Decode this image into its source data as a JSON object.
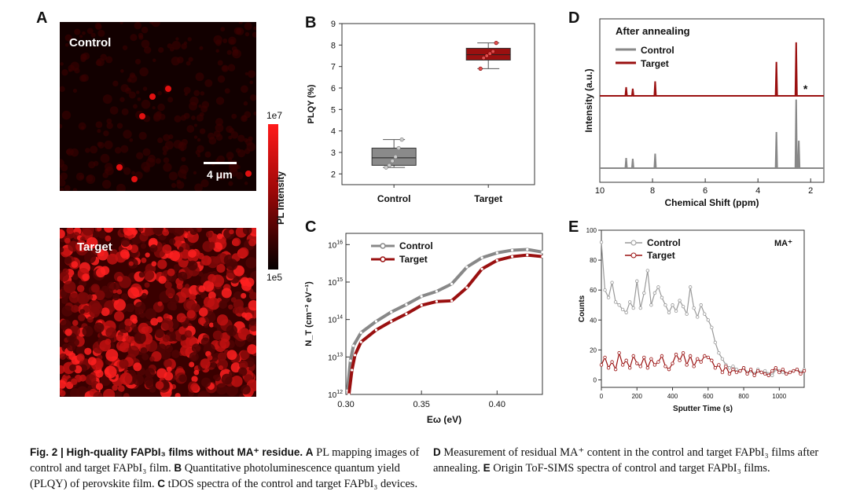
{
  "panels": {
    "A": {
      "letter": "A",
      "maps": [
        {
          "label": "Control",
          "scalebar": "4 μm"
        },
        {
          "label": "Target"
        }
      ],
      "colorbar": {
        "max": "1e7",
        "min": "1e5",
        "label": "PL Intensity"
      }
    },
    "B": {
      "letter": "B"
    },
    "C": {
      "letter": "C"
    },
    "D": {
      "letter": "D"
    },
    "E": {
      "letter": "E"
    }
  },
  "chart_data": [
    {
      "id": "B",
      "type": "box",
      "ylabel": "PLQY (%)",
      "ylim": [
        1.5,
        9
      ],
      "yticks": [
        2,
        3,
        4,
        5,
        6,
        7,
        8,
        9
      ],
      "categories": [
        "Control",
        "Target"
      ],
      "colors": [
        "#8a8a8a",
        "#9a1010"
      ],
      "boxes": [
        {
          "name": "Control",
          "q1": 2.4,
          "median": 2.75,
          "q3": 3.2,
          "whisker_low": 2.3,
          "whisker_high": 3.6,
          "points": [
            2.3,
            2.4,
            2.6,
            2.8,
            3.2,
            3.6
          ]
        },
        {
          "name": "Target",
          "q1": 7.3,
          "median": 7.55,
          "q3": 7.85,
          "whisker_low": 6.9,
          "whisker_high": 8.1,
          "points": [
            6.9,
            7.4,
            7.5,
            7.6,
            7.7,
            8.1
          ]
        }
      ]
    },
    {
      "id": "C",
      "type": "line",
      "xlabel": "Eω (eV)",
      "ylabel": "N_T (cm⁻³ eV⁻¹)",
      "xlim": [
        0.3,
        0.43
      ],
      "ylim_log10": [
        12,
        16.3
      ],
      "log_y": true,
      "xticks": [
        "0.30",
        "0.35",
        "0.40"
      ],
      "xtick_values": [
        0.3,
        0.35,
        0.4
      ],
      "ytick_exponents": [
        12,
        13,
        14,
        15,
        16
      ],
      "legend": "top-left",
      "series": [
        {
          "name": "Control",
          "color": "#888888",
          "x": [
            0.301,
            0.303,
            0.305,
            0.31,
            0.32,
            0.33,
            0.34,
            0.35,
            0.36,
            0.37,
            0.38,
            0.39,
            0.4,
            0.41,
            0.42,
            0.43
          ],
          "log10_y": [
            12.1,
            12.9,
            13.3,
            13.65,
            13.95,
            14.2,
            14.4,
            14.62,
            14.75,
            14.95,
            15.4,
            15.65,
            15.78,
            15.85,
            15.87,
            15.8
          ]
        },
        {
          "name": "Target",
          "color": "#9a1010",
          "x": [
            0.302,
            0.304,
            0.306,
            0.31,
            0.32,
            0.33,
            0.34,
            0.35,
            0.36,
            0.37,
            0.38,
            0.39,
            0.4,
            0.41,
            0.42,
            0.43
          ],
          "log10_y": [
            12.0,
            12.65,
            13.05,
            13.4,
            13.72,
            13.95,
            14.15,
            14.38,
            14.48,
            14.5,
            14.85,
            15.35,
            15.58,
            15.68,
            15.72,
            15.68
          ]
        }
      ]
    },
    {
      "id": "D",
      "type": "line",
      "title": "After annealing",
      "xlabel": "Chemical Shift (ppm)",
      "ylabel": "Intensity (a.u.)",
      "xlim": [
        10,
        1.5
      ],
      "xticks": [
        10,
        8,
        6,
        4,
        2
      ],
      "annotation": "*",
      "legend": "top-left",
      "series": [
        {
          "name": "Control",
          "color": "#888888",
          "baseline": 0.0,
          "peaks": [
            {
              "x": 9.0,
              "h": 0.14
            },
            {
              "x": 8.75,
              "h": 0.13
            },
            {
              "x": 7.9,
              "h": 0.2
            },
            {
              "x": 3.3,
              "h": 0.5
            },
            {
              "x": 2.55,
              "h": 0.95
            },
            {
              "x": 2.45,
              "h": 0.38
            }
          ]
        },
        {
          "name": "Target",
          "color": "#9a1010",
          "baseline": 1.0,
          "peaks": [
            {
              "x": 9.0,
              "h": 0.12
            },
            {
              "x": 8.75,
              "h": 0.1
            },
            {
              "x": 7.9,
              "h": 0.2
            },
            {
              "x": 3.3,
              "h": 0.47
            },
            {
              "x": 2.55,
              "h": 0.74
            }
          ]
        }
      ]
    },
    {
      "id": "E",
      "type": "line",
      "xlabel": "Sputter Time (s)",
      "ylabel": "Counts",
      "xlim": [
        0,
        1140
      ],
      "ylim": [
        -5,
        100
      ],
      "xticks": [
        0,
        200,
        400,
        600,
        800,
        1000
      ],
      "yticks": [
        0,
        20,
        40,
        60,
        80,
        100
      ],
      "annotation": "MA⁺",
      "legend": "top-left",
      "series": [
        {
          "name": "Control",
          "color": "#999999",
          "x": [
            0,
            20,
            40,
            60,
            80,
            100,
            120,
            140,
            160,
            180,
            200,
            220,
            240,
            260,
            280,
            300,
            320,
            340,
            360,
            380,
            400,
            420,
            440,
            460,
            480,
            500,
            520,
            540,
            560,
            580,
            600,
            620,
            640,
            660,
            680,
            700,
            720,
            740,
            760,
            780,
            800,
            820,
            840,
            860,
            880,
            900,
            920,
            940,
            960,
            980,
            1000,
            1020,
            1040,
            1060,
            1080,
            1100,
            1120,
            1140
          ],
          "y": [
            92,
            60,
            55,
            65,
            52,
            50,
            47,
            45,
            52,
            48,
            66,
            48,
            58,
            73,
            50,
            58,
            62,
            55,
            50,
            45,
            50,
            46,
            53,
            49,
            44,
            62,
            48,
            42,
            50,
            44,
            40,
            35,
            25,
            18,
            14,
            10,
            8,
            9,
            7,
            6,
            8,
            5,
            6,
            4,
            7,
            5,
            6,
            4,
            3,
            7,
            6,
            5,
            4,
            5,
            6,
            7,
            5,
            7
          ]
        },
        {
          "name": "Target",
          "color": "#9a1010",
          "x": [
            0,
            20,
            40,
            60,
            80,
            100,
            120,
            140,
            160,
            180,
            200,
            220,
            240,
            260,
            280,
            300,
            320,
            340,
            360,
            380,
            400,
            420,
            440,
            460,
            480,
            500,
            520,
            540,
            560,
            580,
            600,
            620,
            640,
            660,
            680,
            700,
            720,
            740,
            760,
            780,
            800,
            820,
            840,
            860,
            880,
            900,
            920,
            940,
            960,
            980,
            1000,
            1020,
            1040,
            1060,
            1080,
            1100,
            1120,
            1140
          ],
          "y": [
            10,
            15,
            8,
            12,
            7,
            18,
            10,
            13,
            8,
            16,
            11,
            9,
            15,
            8,
            14,
            10,
            12,
            16,
            9,
            7,
            11,
            17,
            13,
            18,
            10,
            16,
            9,
            14,
            12,
            16,
            15,
            13,
            8,
            10,
            5,
            9,
            4,
            7,
            5,
            6,
            8,
            4,
            7,
            3,
            6,
            5,
            4,
            3,
            6,
            8,
            5,
            7,
            4,
            5,
            6,
            7,
            4,
            6
          ]
        }
      ]
    }
  ],
  "caption": {
    "left_bold": "Fig. 2 | High-quality FAPbI₃ films without MA⁺ residue.",
    "left_a_bold": "A",
    "left_a": " PL mapping images of control and target FAPbI₃ film. ",
    "left_b_bold": "B",
    "left_b": " Quantitative photoluminescence quantum yield (PLQY) of perovskite film. ",
    "left_c_bold": "C",
    "left_c": " tDOS spectra of the control and target FAPbI₃ devices.",
    "right_d_bold": "D",
    "right_d": " Measurement of residual MA⁺ content in the control and target FAPbI₃ films after annealing. ",
    "right_e_bold": "E",
    "right_e": " Origin ToF-SIMS spectra of control and target FAPbI₃ films."
  }
}
